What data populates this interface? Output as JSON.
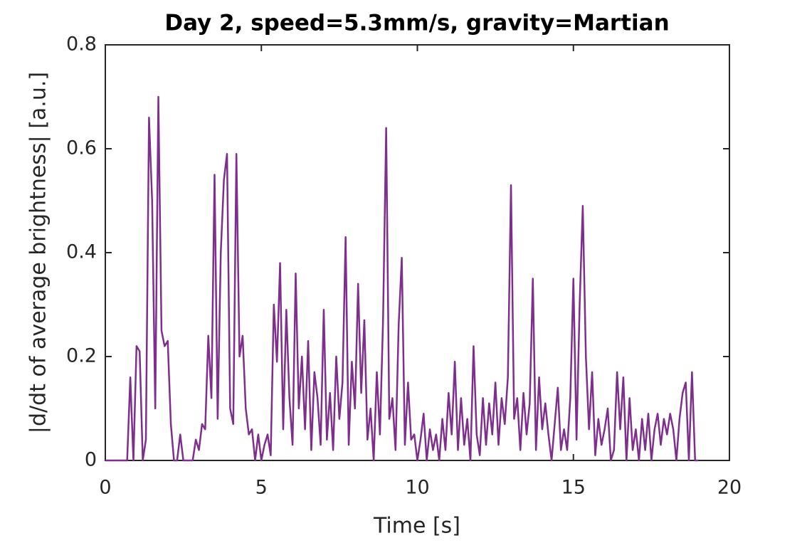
{
  "chart_data": {
    "type": "line",
    "title": "Day 2, speed=5.3mm/s, gravity=Martian",
    "x_label": "Time [s]",
    "y_label": "|d/dt of average brightness| [a.u.]",
    "x": [
      0,
      0.1,
      0.2,
      0.3,
      0.4,
      0.5,
      0.6,
      0.7,
      0.8,
      0.9,
      1,
      1.1,
      1.2,
      1.3,
      1.4,
      1.5,
      1.6,
      1.7,
      1.8,
      1.9,
      2,
      2.1,
      2.2,
      2.3,
      2.4,
      2.5,
      2.6,
      2.7,
      2.8,
      2.9,
      3,
      3.1,
      3.2,
      3.3,
      3.4,
      3.5,
      3.6,
      3.7,
      3.8,
      3.9,
      4,
      4.1,
      4.2,
      4.3,
      4.4,
      4.5,
      4.6,
      4.7,
      4.8,
      4.9,
      5,
      5.1,
      5.2,
      5.3,
      5.4,
      5.5,
      5.6,
      5.7,
      5.8,
      5.9,
      6,
      6.1,
      6.2,
      6.3,
      6.4,
      6.5,
      6.6,
      6.7,
      6.8,
      6.9,
      7,
      7.1,
      7.2,
      7.3,
      7.4,
      7.5,
      7.6,
      7.7,
      7.8,
      7.9,
      8,
      8.1,
      8.2,
      8.3,
      8.4,
      8.5,
      8.6,
      8.7,
      8.8,
      8.9,
      9,
      9.1,
      9.2,
      9.3,
      9.4,
      9.5,
      9.6,
      9.7,
      9.8,
      9.9,
      10,
      10.1,
      10.2,
      10.3,
      10.4,
      10.5,
      10.6,
      10.7,
      10.8,
      10.9,
      11,
      11.1,
      11.2,
      11.3,
      11.4,
      11.5,
      11.6,
      11.7,
      11.8,
      11.9,
      12,
      12.1,
      12.2,
      12.3,
      12.4,
      12.5,
      12.6,
      12.7,
      12.8,
      12.9,
      13,
      13.1,
      13.2,
      13.3,
      13.4,
      13.5,
      13.6,
      13.7,
      13.8,
      13.9,
      14,
      14.1,
      14.2,
      14.3,
      14.4,
      14.5,
      14.6,
      14.7,
      14.8,
      14.9,
      15,
      15.1,
      15.2,
      15.3,
      15.4,
      15.5,
      15.6,
      15.7,
      15.8,
      15.9,
      16,
      16.1,
      16.2,
      16.3,
      16.4,
      16.5,
      16.6,
      16.7,
      16.8,
      16.9,
      17,
      17.1,
      17.2,
      17.3,
      17.4,
      17.5,
      17.6,
      17.7,
      17.8,
      17.9,
      18,
      18.1,
      18.2,
      18.3,
      18.4,
      18.5,
      18.6,
      18.7,
      18.8,
      18.9,
      19
    ],
    "series": [
      {
        "color": "#7e2f8e",
        "values": [
          0,
          0,
          0,
          0,
          0,
          0,
          0,
          0,
          0.16,
          0,
          0.22,
          0.21,
          0,
          0.04,
          0.66,
          0.5,
          0.1,
          0.7,
          0.25,
          0.22,
          0.23,
          0.07,
          0,
          0,
          0.05,
          0,
          0,
          0,
          0,
          0.04,
          0.02,
          0.07,
          0.06,
          0.24,
          0.12,
          0.55,
          0.08,
          0.4,
          0.54,
          0.59,
          0.1,
          0.07,
          0.59,
          0.2,
          0.24,
          0.1,
          0.05,
          0.06,
          0,
          0.05,
          0,
          0.03,
          0.05,
          0.01,
          0.3,
          0.19,
          0.38,
          0.06,
          0.29,
          0.12,
          0.03,
          0.36,
          0.1,
          0.2,
          0.06,
          0.23,
          0.02,
          0.17,
          0.12,
          0.03,
          0.29,
          0.04,
          0.13,
          0.02,
          0.2,
          0.08,
          0.15,
          0.43,
          0.03,
          0.19,
          0.1,
          0.34,
          0.13,
          0.27,
          0.04,
          0.1,
          0,
          0.17,
          0.05,
          0.27,
          0.64,
          0.08,
          0.12,
          0.02,
          0.26,
          0.39,
          0.03,
          0.15,
          0.04,
          0.05,
          0,
          0.04,
          0.09,
          0,
          0.06,
          0.02,
          0.05,
          0,
          0.08,
          0.02,
          0.13,
          0.05,
          0.19,
          0.02,
          0.12,
          0.03,
          0.08,
          0,
          0.22,
          0.05,
          0.01,
          0.12,
          0.03,
          0.11,
          0.05,
          0.15,
          0.03,
          0.12,
          0.07,
          0.16,
          0.53,
          0.08,
          0.12,
          0.02,
          0.13,
          0.05,
          0.11,
          0.35,
          0.02,
          0.16,
          0.06,
          0.11,
          0.05,
          0,
          0.07,
          0.14,
          0.02,
          0.06,
          0.02,
          0.12,
          0.35,
          0.04,
          0.3,
          0.49,
          0.2,
          0.06,
          0.17,
          0.01,
          0.08,
          0.03,
          0.06,
          0.1,
          0,
          0.02,
          0.17,
          0.06,
          0.16,
          0,
          0.12,
          0.02,
          0.06,
          0,
          0.08,
          0.02,
          0.09,
          0,
          0.06,
          0.09,
          0.03,
          0.08,
          0.05,
          0.09,
          0.06,
          0,
          0.08,
          0.13,
          0.15,
          0,
          0.17,
          0,
          0
        ]
      }
    ],
    "xlim": [
      0,
      20
    ],
    "xticks": [
      0,
      5,
      10,
      15,
      20
    ],
    "ylim": [
      0,
      0.8
    ],
    "yticks": [
      0,
      0.2,
      0.4,
      0.6,
      0.8
    ],
    "grid": false
  }
}
